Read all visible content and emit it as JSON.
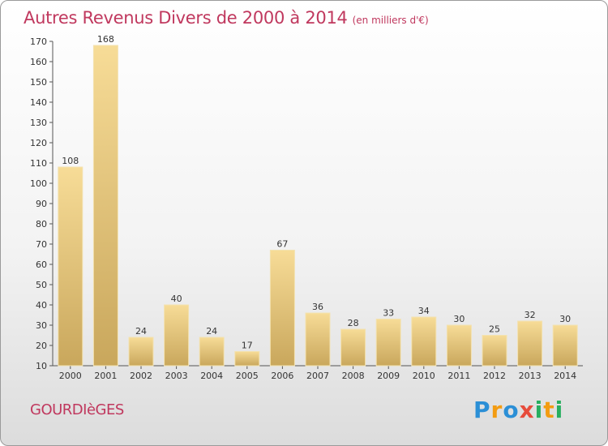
{
  "title": "Autres Revenus Divers de 2000 à 2014",
  "unit_note": "(en milliers d'€)",
  "commune": "GOURDIèGES",
  "logo": {
    "text": "Proxiti",
    "letters": [
      {
        "ch": "P",
        "color": "#2b8fd6"
      },
      {
        "ch": "r",
        "color": "#f39c12"
      },
      {
        "ch": "o",
        "color": "#2b8fd6"
      },
      {
        "ch": "x",
        "color": "#e74c3c"
      },
      {
        "ch": "i",
        "color": "#27ae60"
      },
      {
        "ch": "t",
        "color": "#f39c12"
      },
      {
        "ch": "i",
        "color": "#27ae60"
      }
    ]
  },
  "chart_data": {
    "type": "bar",
    "title": "Autres Revenus Divers de 2000 à 2014",
    "subtitle": "(en milliers d'€)",
    "xlabel": "",
    "ylabel": "",
    "categories": [
      "2000",
      "2001",
      "2002",
      "2003",
      "2004",
      "2005",
      "2006",
      "2007",
      "2008",
      "2009",
      "2010",
      "2011",
      "2012",
      "2013",
      "2014"
    ],
    "values": [
      108,
      168,
      24,
      40,
      24,
      17,
      67,
      36,
      28,
      33,
      34,
      30,
      25,
      32,
      30
    ],
    "ylim": [
      10,
      170
    ],
    "yticks": [
      10,
      20,
      30,
      40,
      50,
      60,
      70,
      80,
      90,
      100,
      110,
      120,
      130,
      140,
      150,
      160,
      170
    ],
    "grid": false,
    "legend": "none",
    "bar_color": "#e6c77d"
  }
}
